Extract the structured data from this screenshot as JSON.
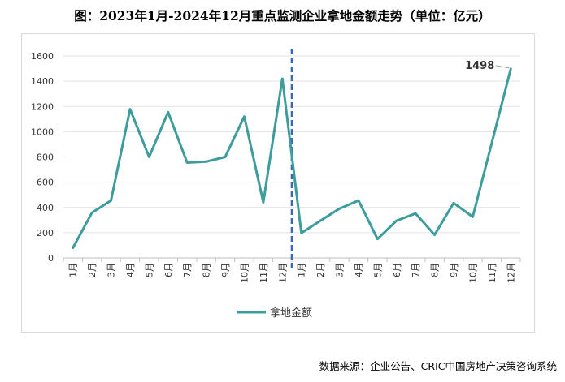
{
  "title": "图：2023年1月-2024年12月重点监测企业拿地金额走势（单位：亿元）",
  "source": "数据来源：企业公告、CRIC中国房地产决策咨询系统",
  "chart_data": {
    "type": "line",
    "categories": [
      "1月",
      "2月",
      "3月",
      "4月",
      "5月",
      "6月",
      "7月",
      "8月",
      "9月",
      "10月",
      "11月",
      "12月",
      "1月",
      "2月",
      "3月",
      "4月",
      "5月",
      "6月",
      "7月",
      "8月",
      "9月",
      "10月",
      "11月",
      "12月"
    ],
    "series": [
      {
        "name": "拿地金额",
        "color": "#3d9c9c",
        "values": [
          80,
          358,
          455,
          1178,
          800,
          1155,
          755,
          763,
          800,
          1120,
          440,
          1420,
          198,
          295,
          390,
          455,
          150,
          295,
          352,
          183,
          435,
          325,
          910,
          1498
        ]
      }
    ],
    "yticks": [
      "0",
      "200",
      "400",
      "600",
      "800",
      "1000",
      "1200",
      "1400",
      "1600"
    ],
    "ylim": [
      0,
      1600
    ],
    "grid": true,
    "divider": {
      "after_index": 11,
      "style": "dashed",
      "color": "#3b68b0"
    },
    "annotation": {
      "index": 23,
      "text": "1498"
    },
    "legend_position": "bottom"
  }
}
